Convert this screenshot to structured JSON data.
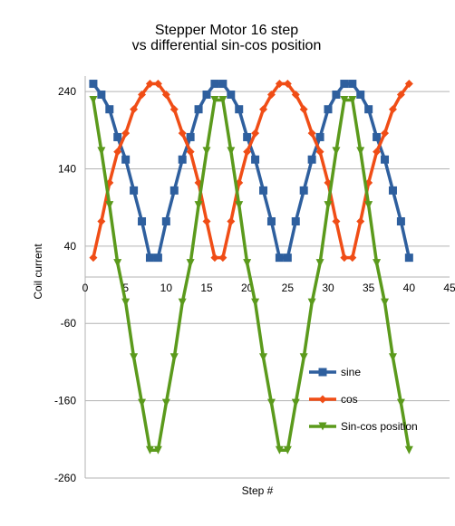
{
  "chart_data": {
    "type": "line",
    "title": [
      "Stepper Motor 16 step",
      "vs differential sin-cos position"
    ],
    "xlabel": "Step #",
    "ylabel": "Coil current",
    "xlim": [
      0,
      45
    ],
    "ylim": [
      -260,
      260
    ],
    "xticks": [
      0,
      5,
      10,
      15,
      20,
      25,
      30,
      35,
      40,
      45
    ],
    "xtick_labels": [
      "0",
      "5",
      "10",
      "15",
      "20",
      "25",
      "30",
      "35",
      "40",
      "45"
    ],
    "yticks": [
      -260,
      -160,
      -60,
      40,
      140,
      240
    ],
    "ytick_labels": [
      "-260",
      "-160",
      "-60",
      "40",
      "140",
      "240"
    ],
    "grid": "horizontal",
    "legend_position": "right",
    "x": [
      1,
      2,
      3,
      4,
      5,
      6,
      7,
      8,
      9,
      10,
      11,
      12,
      13,
      14,
      15,
      16,
      17,
      18,
      19,
      20,
      21,
      22,
      23,
      24,
      25,
      26,
      27,
      28,
      29,
      30,
      31,
      32,
      33,
      34,
      35,
      36,
      37,
      38,
      39,
      40
    ],
    "series": [
      {
        "name": "sine",
        "color": "#2e5f9e",
        "marker": "square",
        "values": [
          250,
          236,
          217,
          181,
          152,
          112,
          72,
          25,
          25,
          72,
          112,
          152,
          181,
          217,
          236,
          250,
          250,
          236,
          217,
          181,
          152,
          112,
          72,
          25,
          25,
          72,
          112,
          152,
          181,
          217,
          236,
          250,
          250,
          236,
          217,
          181,
          152,
          112,
          72,
          25
        ]
      },
      {
        "name": "cos",
        "color": "#f04d16",
        "marker": "diamond",
        "values": [
          25,
          72,
          122,
          162,
          186,
          217,
          236,
          250,
          250,
          236,
          217,
          186,
          162,
          122,
          72,
          25,
          25,
          72,
          122,
          162,
          186,
          217,
          236,
          250,
          250,
          236,
          217,
          186,
          162,
          122,
          72,
          25,
          25,
          72,
          122,
          162,
          186,
          217,
          236,
          250
        ]
      },
      {
        "name": "Sin-cos position",
        "color": "#5b9a1c",
        "marker": "triangle-down",
        "values": [
          229,
          163,
          93,
          18,
          -33,
          -104,
          -163,
          -224,
          -224,
          -163,
          -104,
          -33,
          18,
          93,
          163,
          229,
          229,
          163,
          93,
          18,
          -33,
          -104,
          -163,
          -224,
          -224,
          -163,
          -104,
          -33,
          18,
          93,
          163,
          229,
          229,
          163,
          93,
          18,
          -33,
          -104,
          -163,
          -224
        ]
      }
    ]
  }
}
